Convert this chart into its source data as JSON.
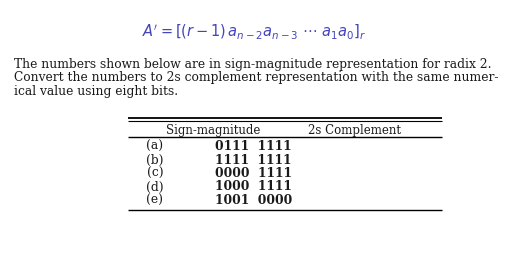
{
  "formula": "$A^{\\prime} = [(r-1)\\,a_{n-2}a_{n-3}\\ \\cdots\\ a_1a_0]_r$",
  "paragraph_lines": [
    "The numbers shown below are in sign-magnitude representation for radix 2.",
    "Convert the numbers to 2s complement representation with the same numer-",
    "ical value using eight bits."
  ],
  "col_header_1": "Sign-magnitude",
  "col_header_2": "2s Complement",
  "rows": [
    [
      "(a)",
      "0111  1111"
    ],
    [
      "(b)",
      "1111  1111"
    ],
    [
      "(c)",
      "0000  1111"
    ],
    [
      "(d)",
      "1000  1111"
    ],
    [
      "(e)",
      "1001  0000"
    ]
  ],
  "bg_color": "#ffffff",
  "text_color": "#1a1a1a",
  "formula_color": "#4444bb",
  "font_size_formula": 10.5,
  "font_size_body": 8.8,
  "font_size_table_header": 8.5,
  "font_size_table_data": 8.8
}
